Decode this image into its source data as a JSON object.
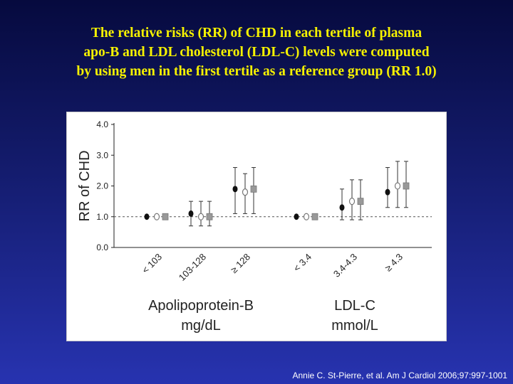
{
  "slide": {
    "title_lines": [
      "The relative risks (RR) of CHD in each tertile of plasma",
      "apo-B and LDL cholesterol (LDL-C) levels were computed",
      "by using men in the first tertile as a reference group (RR 1.0)"
    ],
    "citation": "Annie C. St-Pierre, et al. Am J Cardiol 2006;97:997-1001"
  },
  "chart_data": {
    "type": "scatter",
    "subtype": "point-estimate-with-error-bars",
    "ylabel": "RR of CHD",
    "ylim": [
      0.0,
      4.0
    ],
    "yticks": [
      "0.0",
      "1.0",
      "2.0",
      "3.0",
      "4.0"
    ],
    "reference_line": 1.0,
    "groups": [
      {
        "label_line1": "Apolipoprotein-B",
        "label_line2": "mg/dL",
        "categories": [
          "< 103",
          "103-128",
          "≥ 128"
        ]
      },
      {
        "label_line1": "LDL-C",
        "label_line2": "mmol/L",
        "categories": [
          "< 3.4",
          "3.4-4.3",
          "≥ 4.3"
        ]
      }
    ],
    "series": [
      {
        "marker": "filled-circle",
        "color": "#111111",
        "points": [
          {
            "rr": 1.0,
            "low": 1.0,
            "high": 1.0
          },
          {
            "rr": 1.1,
            "low": 0.7,
            "high": 1.5
          },
          {
            "rr": 1.9,
            "low": 1.1,
            "high": 2.6
          },
          {
            "rr": 1.0,
            "low": 1.0,
            "high": 1.0
          },
          {
            "rr": 1.3,
            "low": 0.9,
            "high": 1.9
          },
          {
            "rr": 1.8,
            "low": 1.3,
            "high": 2.6
          }
        ]
      },
      {
        "marker": "open-circle",
        "color": "#777777",
        "points": [
          {
            "rr": 1.0,
            "low": 1.0,
            "high": 1.0
          },
          {
            "rr": 1.0,
            "low": 0.7,
            "high": 1.5
          },
          {
            "rr": 1.8,
            "low": 1.1,
            "high": 2.4
          },
          {
            "rr": 1.0,
            "low": 1.0,
            "high": 1.0
          },
          {
            "rr": 1.5,
            "low": 0.9,
            "high": 2.2
          },
          {
            "rr": 2.0,
            "low": 1.3,
            "high": 2.8
          }
        ]
      },
      {
        "marker": "square",
        "color": "#999999",
        "points": [
          {
            "rr": 1.0,
            "low": 1.0,
            "high": 1.0
          },
          {
            "rr": 1.0,
            "low": 0.7,
            "high": 1.5
          },
          {
            "rr": 1.9,
            "low": 1.1,
            "high": 2.6
          },
          {
            "rr": 1.0,
            "low": 1.0,
            "high": 1.0
          },
          {
            "rr": 1.5,
            "low": 0.9,
            "high": 2.2
          },
          {
            "rr": 2.0,
            "low": 1.3,
            "high": 2.8
          }
        ]
      }
    ]
  }
}
